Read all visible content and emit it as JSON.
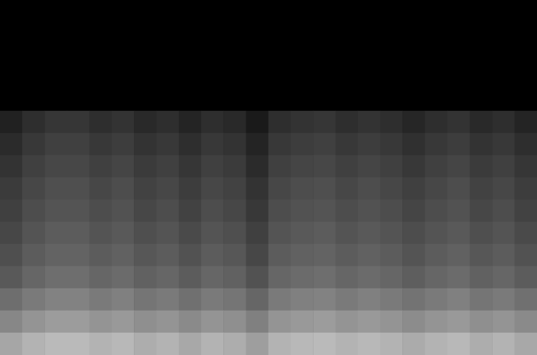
{
  "chart_data": {
    "type": "heatmap",
    "tick_labels": false,
    "grid": false,
    "zlim": [
      0,
      1
    ],
    "cells": [
      [
        0,
        0,
        0,
        0,
        0,
        0,
        0,
        0,
        0,
        0,
        0,
        0,
        0,
        0,
        0,
        0,
        0,
        0,
        0,
        0,
        0,
        0,
        0,
        0
      ],
      [
        0,
        0,
        0,
        0,
        0,
        0,
        0,
        0,
        0,
        0,
        0,
        0,
        0,
        0,
        0,
        0,
        0,
        0,
        0,
        0,
        0,
        0,
        0,
        0
      ],
      [
        0,
        0,
        0,
        0,
        0,
        0,
        0,
        0,
        0,
        0,
        0,
        0,
        0,
        0,
        0,
        0,
        0,
        0,
        0,
        0,
        0,
        0,
        0,
        0
      ],
      [
        0,
        0,
        0,
        0,
        0,
        0,
        0,
        0,
        0,
        0,
        0,
        0,
        0,
        0,
        0,
        0,
        0,
        0,
        0,
        0,
        0,
        0,
        0,
        0
      ],
      [
        0,
        0,
        0,
        0,
        0,
        0,
        0,
        0,
        0,
        0,
        0,
        0,
        0,
        0,
        0,
        0,
        0,
        0,
        0,
        0,
        0,
        0,
        0,
        0
      ],
      [
        0.13,
        0.18,
        0.21,
        0.21,
        0.18,
        0.2,
        0.16,
        0.18,
        0.14,
        0.18,
        0.16,
        0.1,
        0.18,
        0.2,
        0.21,
        0.18,
        0.2,
        0.18,
        0.15,
        0.18,
        0.2,
        0.16,
        0.18,
        0.14
      ],
      [
        0.17,
        0.22,
        0.25,
        0.25,
        0.22,
        0.24,
        0.2,
        0.22,
        0.18,
        0.22,
        0.2,
        0.14,
        0.22,
        0.24,
        0.25,
        0.22,
        0.24,
        0.22,
        0.19,
        0.22,
        0.24,
        0.2,
        0.22,
        0.18
      ],
      [
        0.2,
        0.25,
        0.28,
        0.28,
        0.25,
        0.27,
        0.23,
        0.25,
        0.21,
        0.25,
        0.23,
        0.17,
        0.25,
        0.27,
        0.28,
        0.25,
        0.27,
        0.25,
        0.22,
        0.25,
        0.27,
        0.23,
        0.25,
        0.21
      ],
      [
        0.23,
        0.28,
        0.31,
        0.31,
        0.28,
        0.3,
        0.26,
        0.28,
        0.24,
        0.28,
        0.26,
        0.2,
        0.28,
        0.3,
        0.31,
        0.28,
        0.3,
        0.28,
        0.25,
        0.28,
        0.3,
        0.26,
        0.28,
        0.24
      ],
      [
        0.25,
        0.3,
        0.33,
        0.33,
        0.3,
        0.32,
        0.28,
        0.3,
        0.26,
        0.3,
        0.28,
        0.22,
        0.3,
        0.32,
        0.33,
        0.3,
        0.32,
        0.3,
        0.27,
        0.3,
        0.32,
        0.28,
        0.3,
        0.26
      ],
      [
        0.28,
        0.33,
        0.36,
        0.36,
        0.33,
        0.35,
        0.31,
        0.33,
        0.29,
        0.33,
        0.31,
        0.25,
        0.33,
        0.35,
        0.36,
        0.33,
        0.35,
        0.33,
        0.3,
        0.33,
        0.35,
        0.31,
        0.33,
        0.29
      ],
      [
        0.31,
        0.36,
        0.39,
        0.39,
        0.36,
        0.38,
        0.34,
        0.36,
        0.32,
        0.36,
        0.34,
        0.28,
        0.36,
        0.38,
        0.39,
        0.36,
        0.38,
        0.36,
        0.33,
        0.36,
        0.38,
        0.34,
        0.36,
        0.32
      ],
      [
        0.35,
        0.4,
        0.43,
        0.43,
        0.4,
        0.42,
        0.38,
        0.4,
        0.36,
        0.4,
        0.38,
        0.32,
        0.4,
        0.42,
        0.43,
        0.4,
        0.42,
        0.4,
        0.37,
        0.4,
        0.42,
        0.38,
        0.4,
        0.36
      ],
      [
        0.43,
        0.48,
        0.51,
        0.51,
        0.48,
        0.5,
        0.46,
        0.48,
        0.44,
        0.48,
        0.46,
        0.4,
        0.48,
        0.5,
        0.51,
        0.48,
        0.5,
        0.48,
        0.45,
        0.48,
        0.5,
        0.46,
        0.48,
        0.44
      ],
      [
        0.53,
        0.58,
        0.61,
        0.61,
        0.58,
        0.6,
        0.56,
        0.58,
        0.54,
        0.58,
        0.56,
        0.5,
        0.58,
        0.6,
        0.61,
        0.58,
        0.6,
        0.58,
        0.55,
        0.58,
        0.6,
        0.56,
        0.58,
        0.54
      ],
      [
        0.65,
        0.7,
        0.73,
        0.73,
        0.7,
        0.72,
        0.68,
        0.7,
        0.66,
        0.7,
        0.68,
        0.62,
        0.7,
        0.72,
        0.73,
        0.7,
        0.72,
        0.7,
        0.67,
        0.7,
        0.72,
        0.68,
        0.7,
        0.66
      ]
    ]
  }
}
